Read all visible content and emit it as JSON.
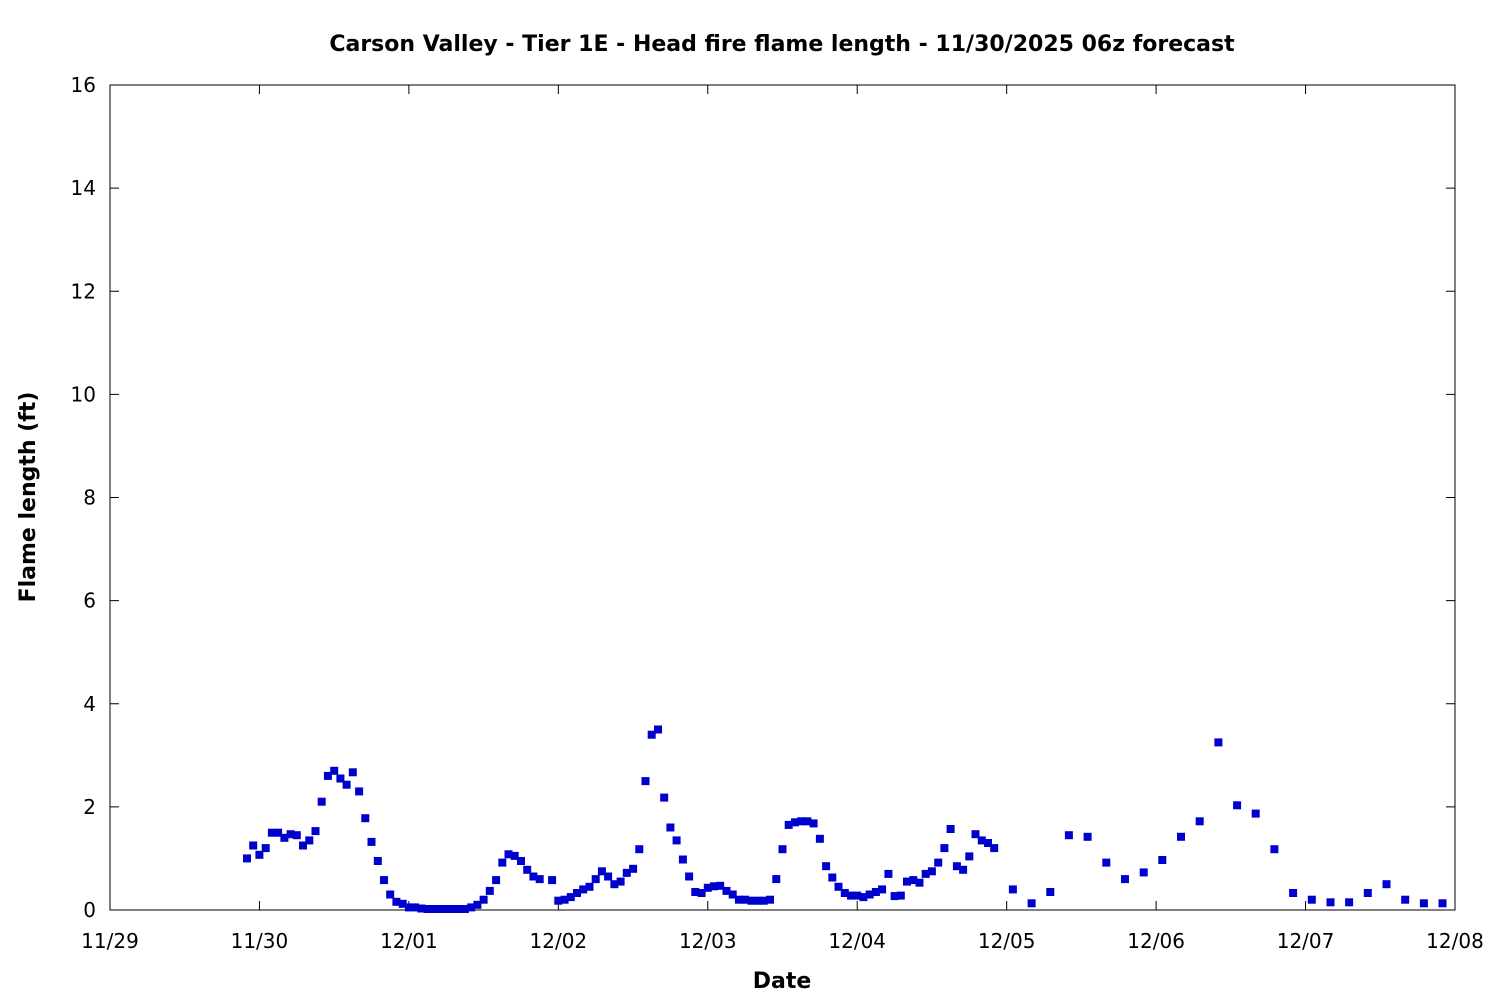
{
  "chart_data": {
    "type": "scatter",
    "title": "Carson Valley - Tier 1E - Head fire flame length - 11/30/2025 06z forecast",
    "xlabel": "Date",
    "ylabel": "Flame length (ft)",
    "xlim": [
      "11/29",
      "12/08"
    ],
    "ylim": [
      0,
      16
    ],
    "x_ticks": [
      "11/29",
      "11/30",
      "12/01",
      "12/02",
      "12/03",
      "12/04",
      "12/05",
      "12/06",
      "12/07",
      "12/08"
    ],
    "y_ticks": [
      0,
      2,
      4,
      6,
      8,
      10,
      12,
      14,
      16
    ],
    "grid": false,
    "marker_color": "#0000cc",
    "marker": "square",
    "series": [
      {
        "x": [
          "11/29 22:00",
          "11/29 23:00",
          "11/30 00:00",
          "11/30 01:00",
          "11/30 02:00",
          "11/30 03:00",
          "11/30 04:00",
          "11/30 05:00",
          "11/30 06:00",
          "11/30 07:00",
          "11/30 08:00",
          "11/30 09:00",
          "11/30 10:00",
          "11/30 11:00",
          "11/30 12:00",
          "11/30 13:00",
          "11/30 14:00",
          "11/30 15:00",
          "11/30 16:00",
          "11/30 17:00",
          "11/30 18:00",
          "11/30 19:00",
          "11/30 20:00",
          "11/30 21:00",
          "11/30 22:00",
          "11/30 23:00",
          "12/01 00:00",
          "12/01 01:00",
          "12/01 02:00",
          "12/01 03:00",
          "12/01 04:00",
          "12/01 05:00",
          "12/01 06:00",
          "12/01 07:00",
          "12/01 08:00",
          "12/01 09:00",
          "12/01 10:00",
          "12/01 11:00",
          "12/01 12:00",
          "12/01 13:00",
          "12/01 14:00",
          "12/01 15:00",
          "12/01 16:00",
          "12/01 17:00",
          "12/01 18:00",
          "12/01 19:00",
          "12/01 20:00",
          "12/01 21:00",
          "12/01 23:00",
          "12/02 00:00",
          "12/02 01:00",
          "12/02 02:00",
          "12/02 03:00",
          "12/02 04:00",
          "12/02 05:00",
          "12/02 06:00",
          "12/02 07:00",
          "12/02 08:00",
          "12/02 09:00",
          "12/02 10:00",
          "12/02 11:00",
          "12/02 12:00",
          "12/02 13:00",
          "12/02 14:00",
          "12/02 15:00",
          "12/02 16:00",
          "12/02 17:00",
          "12/02 18:00",
          "12/02 19:00",
          "12/02 20:00",
          "12/02 21:00",
          "12/02 22:00",
          "12/02 23:00",
          "12/03 00:00",
          "12/03 01:00",
          "12/03 02:00",
          "12/03 03:00",
          "12/03 04:00",
          "12/03 05:00",
          "12/03 06:00",
          "12/03 07:00",
          "12/03 08:00",
          "12/03 09:00",
          "12/03 10:00",
          "12/03 11:00",
          "12/03 12:00",
          "12/03 13:00",
          "12/03 14:00",
          "12/03 15:00",
          "12/03 16:00",
          "12/03 17:00",
          "12/03 18:00",
          "12/03 19:00",
          "12/03 20:00",
          "12/03 21:00",
          "12/03 22:00",
          "12/03 23:00",
          "12/04 00:00",
          "12/04 01:00",
          "12/04 02:00",
          "12/04 03:00",
          "12/04 04:00",
          "12/04 05:00",
          "12/04 06:00",
          "12/04 07:00",
          "12/04 08:00",
          "12/04 09:00",
          "12/04 10:00",
          "12/04 11:00",
          "12/04 12:00",
          "12/04 13:00",
          "12/04 14:00",
          "12/04 15:00",
          "12/04 16:00",
          "12/04 17:00",
          "12/04 18:00",
          "12/04 19:00",
          "12/04 20:00",
          "12/04 21:00",
          "12/04 22:00",
          "12/05 01:00",
          "12/05 04:00",
          "12/05 07:00",
          "12/05 10:00",
          "12/05 13:00",
          "12/05 16:00",
          "12/05 19:00",
          "12/05 22:00",
          "12/06 01:00",
          "12/06 04:00",
          "12/06 07:00",
          "12/06 10:00",
          "12/06 13:00",
          "12/06 16:00",
          "12/06 19:00",
          "12/06 22:00",
          "12/07 01:00",
          "12/07 04:00",
          "12/07 07:00",
          "12/07 10:00",
          "12/07 13:00",
          "12/07 16:00",
          "12/07 19:00",
          "12/07 22:00"
        ],
        "y": [
          1.0,
          1.25,
          1.07,
          1.2,
          1.5,
          1.5,
          1.4,
          1.47,
          1.45,
          1.25,
          1.35,
          1.53,
          2.1,
          2.6,
          2.7,
          2.55,
          2.43,
          2.67,
          2.3,
          1.78,
          1.32,
          0.95,
          0.58,
          0.3,
          0.16,
          0.12,
          0.05,
          0.05,
          0.03,
          0.02,
          0.02,
          0.02,
          0.02,
          0.02,
          0.02,
          0.02,
          0.05,
          0.1,
          0.2,
          0.37,
          0.58,
          0.92,
          1.08,
          1.05,
          0.95,
          0.78,
          0.65,
          0.6,
          0.58,
          0.18,
          0.2,
          0.25,
          0.33,
          0.4,
          0.45,
          0.6,
          0.75,
          0.65,
          0.5,
          0.55,
          0.72,
          0.8,
          1.18,
          2.5,
          3.4,
          3.5,
          2.18,
          1.6,
          1.35,
          0.98,
          0.65,
          0.35,
          0.33,
          0.43,
          0.46,
          0.47,
          0.37,
          0.3,
          0.2,
          0.2,
          0.18,
          0.18,
          0.18,
          0.2,
          0.6,
          1.18,
          1.65,
          1.7,
          1.72,
          1.72,
          1.68,
          1.38,
          0.85,
          0.63,
          0.45,
          0.33,
          0.28,
          0.28,
          0.25,
          0.3,
          0.35,
          0.4,
          0.7,
          0.27,
          0.28,
          0.55,
          0.58,
          0.53,
          0.7,
          0.75,
          0.92,
          1.2,
          1.57,
          0.85,
          0.78,
          1.04,
          1.47,
          1.35,
          1.3,
          1.2,
          0.4,
          0.13,
          0.35,
          1.45,
          1.42,
          0.92,
          0.6,
          0.73,
          0.97,
          1.42,
          1.72,
          3.25,
          2.03,
          1.87,
          1.18,
          0.33,
          0.2,
          0.15,
          0.15,
          0.33,
          0.5,
          0.2,
          0.13,
          0.13
        ]
      }
    ]
  }
}
